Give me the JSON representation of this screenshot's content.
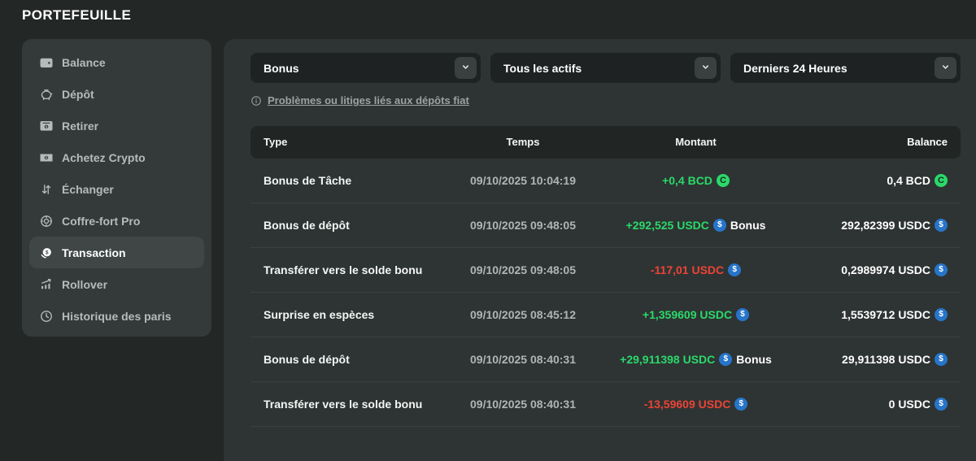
{
  "page": {
    "title": "PORTEFEUILLE"
  },
  "sidebar": {
    "items": [
      {
        "label": "Balance",
        "icon": "wallet-icon",
        "active": false
      },
      {
        "label": "Dépôt",
        "icon": "piggy-bank-icon",
        "active": false
      },
      {
        "label": "Retirer",
        "icon": "withdraw-icon",
        "active": false
      },
      {
        "label": "Achetez Crypto",
        "icon": "buy-crypto-icon",
        "active": false
      },
      {
        "label": "Échanger",
        "icon": "swap-icon",
        "active": false
      },
      {
        "label": "Coffre-fort Pro",
        "icon": "vault-icon",
        "active": false
      },
      {
        "label": "Transaction",
        "icon": "transaction-icon",
        "active": true
      },
      {
        "label": "Rollover",
        "icon": "rollover-icon",
        "active": false
      },
      {
        "label": "Historique des paris",
        "icon": "clock-icon",
        "active": false
      }
    ]
  },
  "filters": {
    "type": {
      "value": "Bonus"
    },
    "asset": {
      "value": "Tous les actifs"
    },
    "time": {
      "value": "Derniers 24 Heures"
    }
  },
  "info_link": {
    "label": "Problèmes ou litiges liés aux dépôts fiat"
  },
  "table": {
    "headers": [
      "Type",
      "Temps",
      "Montant",
      "Balance"
    ],
    "rows": [
      {
        "type": "Bonus de Tâche",
        "time": "09/10/2025 10:04:19",
        "amount": "+0,4 BCD",
        "direction": "positive",
        "coin": "BCD",
        "tag": "",
        "balance": "0,4 BCD",
        "balance_coin": "BCD"
      },
      {
        "type": "Bonus de dépôt",
        "time": "09/10/2025 09:48:05",
        "amount": "+292,525 USDC",
        "direction": "positive",
        "coin": "USDC",
        "tag": "Bonus",
        "balance": "292,82399 USDC",
        "balance_coin": "USDC"
      },
      {
        "type": "Transférer vers le solde bonu",
        "time": "09/10/2025 09:48:05",
        "amount": "-117,01 USDC",
        "direction": "negative",
        "coin": "USDC",
        "tag": "",
        "balance": "0,2989974 USDC",
        "balance_coin": "USDC"
      },
      {
        "type": "Surprise en espèces",
        "time": "09/10/2025 08:45:12",
        "amount": "+1,359609 USDC",
        "direction": "positive",
        "coin": "USDC",
        "tag": "",
        "balance": "1,5539712 USDC",
        "balance_coin": "USDC"
      },
      {
        "type": "Bonus de dépôt",
        "time": "09/10/2025 08:40:31",
        "amount": "+29,911398 USDC",
        "direction": "positive",
        "coin": "USDC",
        "tag": "Bonus",
        "balance": "29,911398 USDC",
        "balance_coin": "USDC"
      },
      {
        "type": "Transférer vers le solde bonu",
        "time": "09/10/2025 08:40:31",
        "amount": "-13,59609 USDC",
        "direction": "negative",
        "coin": "USDC",
        "tag": "",
        "balance": "0 USDC",
        "balance_coin": "USDC"
      }
    ]
  },
  "colors": {
    "positive": "#2bd96b",
    "negative": "#ed4337",
    "usdc_blue": "#2775ca",
    "bcd_green": "#2bd96b"
  }
}
